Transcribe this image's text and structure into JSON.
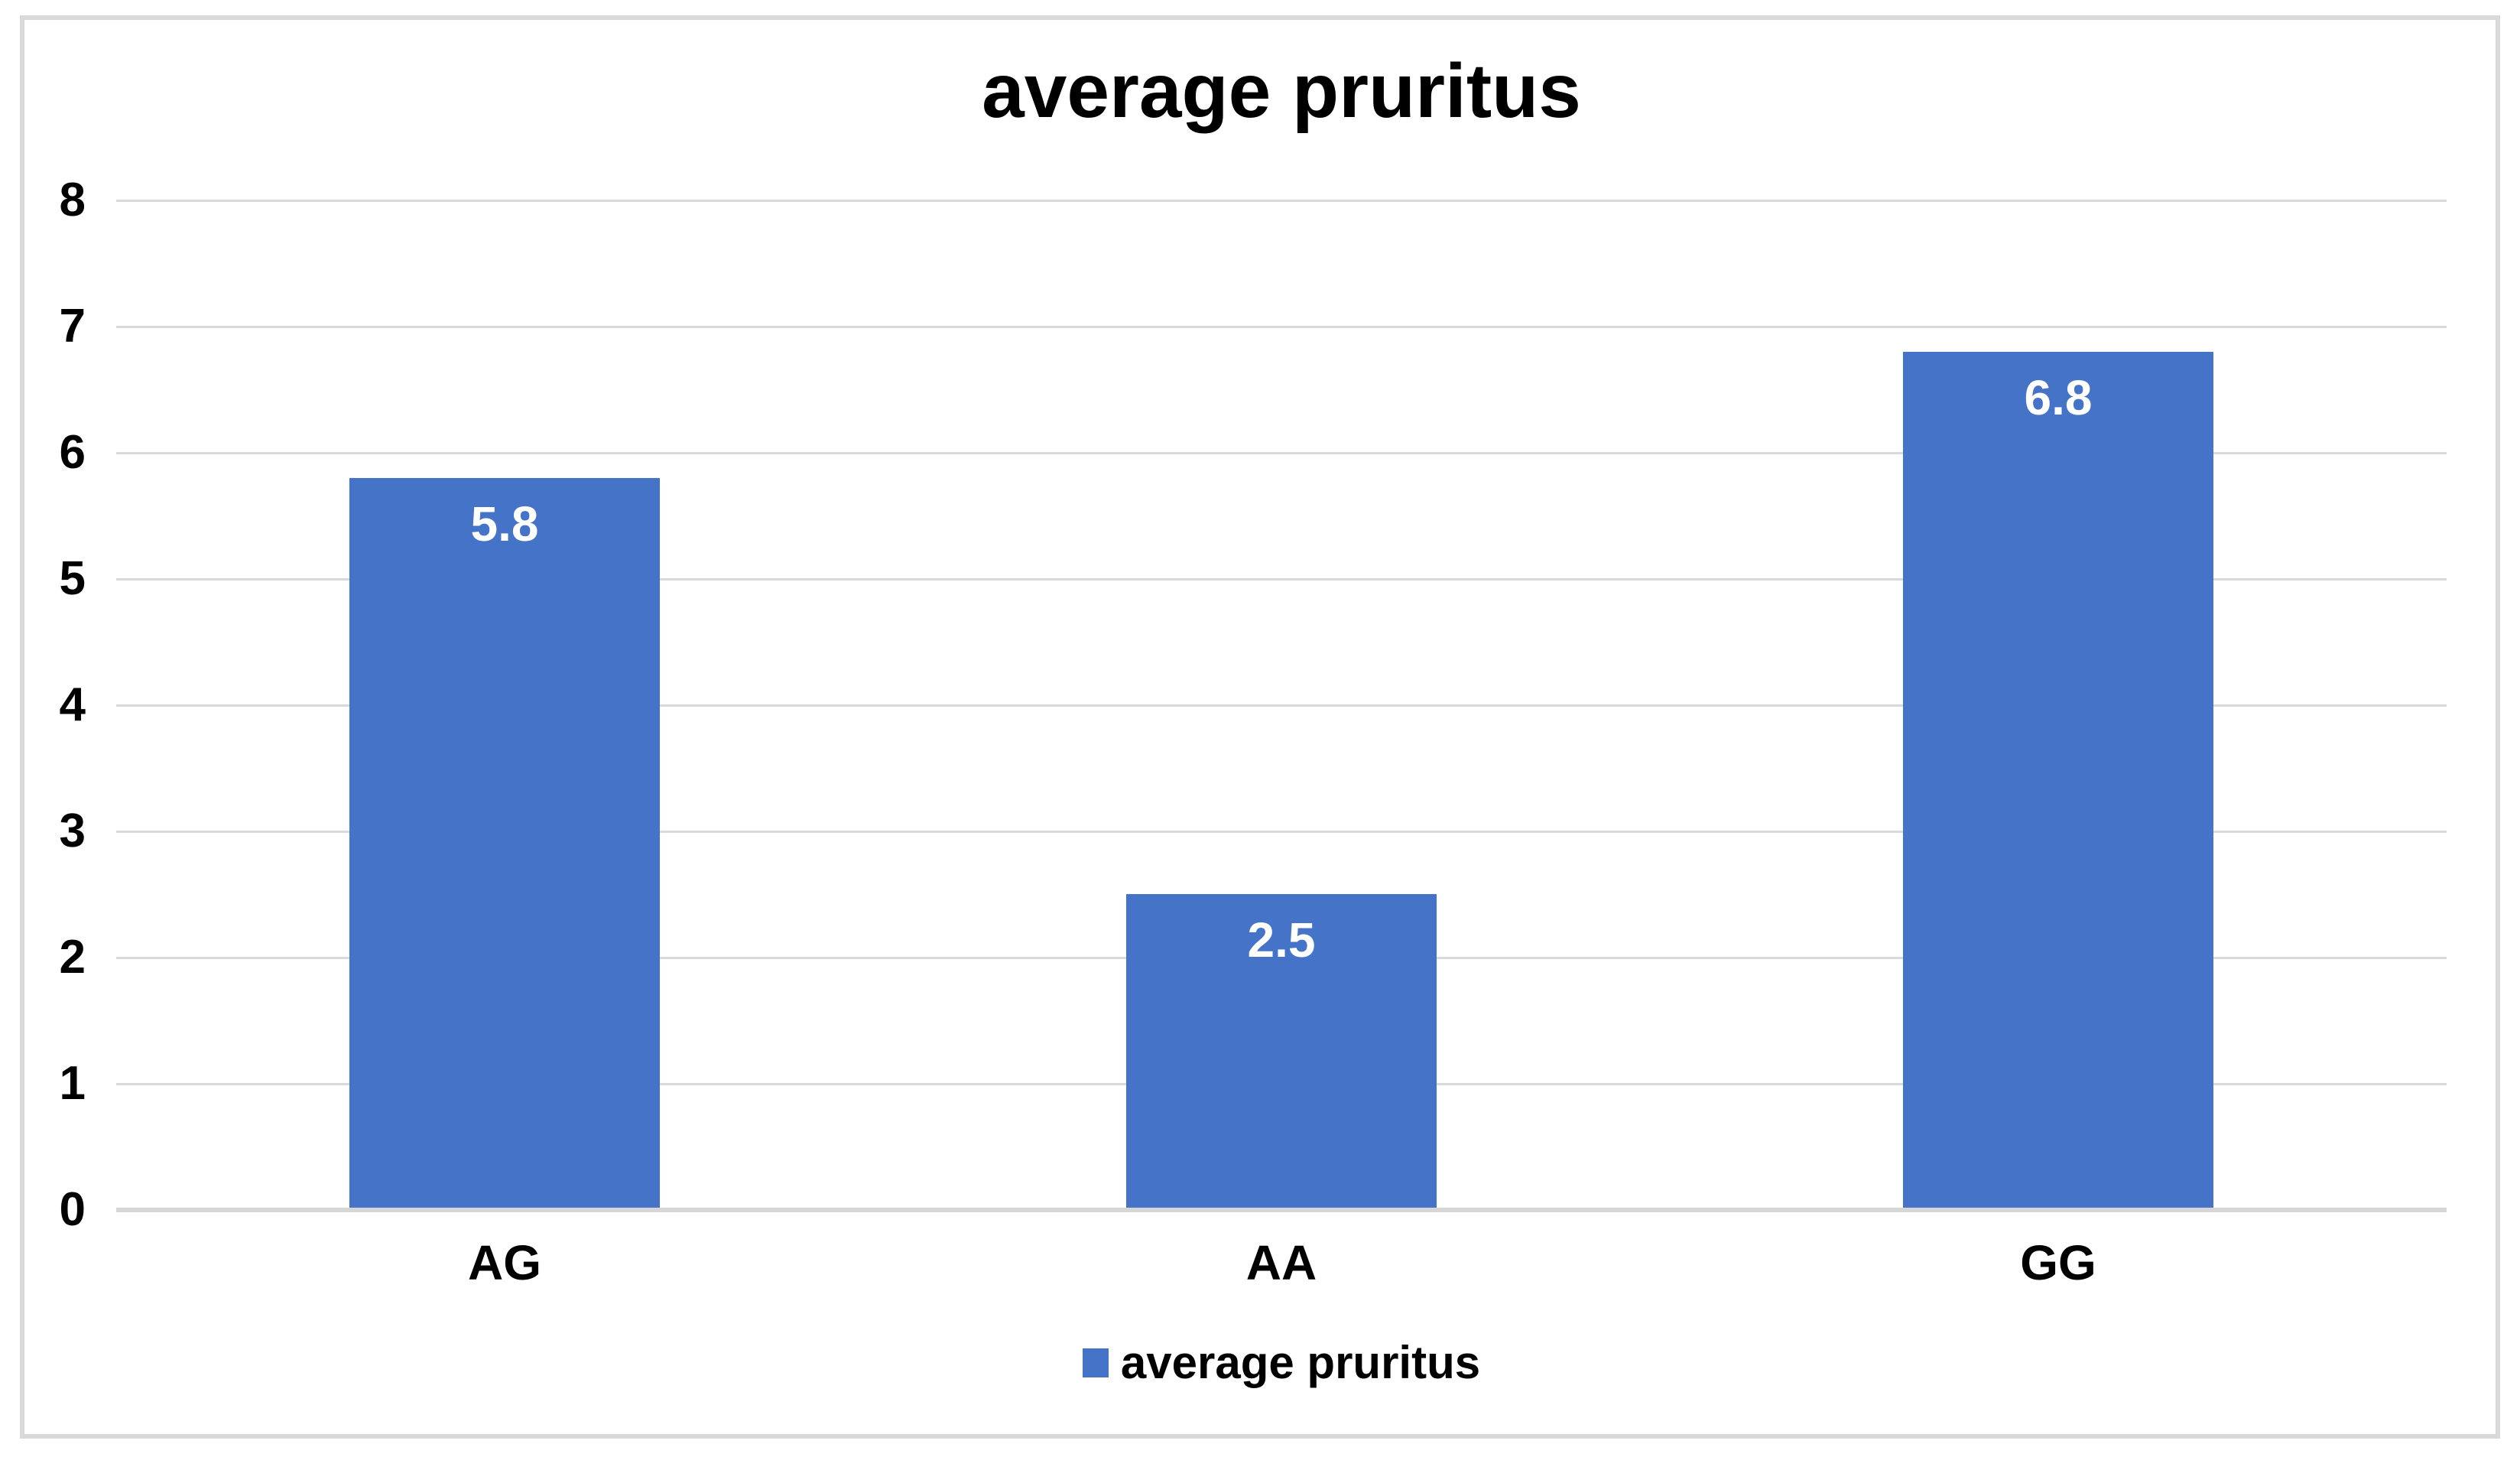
{
  "chart_data": {
    "type": "bar",
    "title": "average pruritus",
    "categories": [
      "AG",
      "AA",
      "GG"
    ],
    "values": [
      5.8,
      2.5,
      6.8
    ],
    "value_labels": [
      "5.8",
      "2.5",
      "6.8"
    ],
    "xlabel": "",
    "ylabel": "",
    "ylim": [
      0,
      8
    ],
    "yticks": [
      0,
      1,
      2,
      3,
      4,
      5,
      6,
      7,
      8
    ],
    "grid": "horizontal-on",
    "legend": {
      "position": "bottom-center",
      "label": "average pruritus"
    },
    "colors": {
      "bar": "#4573C8",
      "gridline": "#d9d9d9",
      "axis_line": "#d6d6d6",
      "frame": "#d9d9d9",
      "title_text": "#000000",
      "tick_text": "#000000",
      "data_label_text": "#ffffff"
    }
  }
}
